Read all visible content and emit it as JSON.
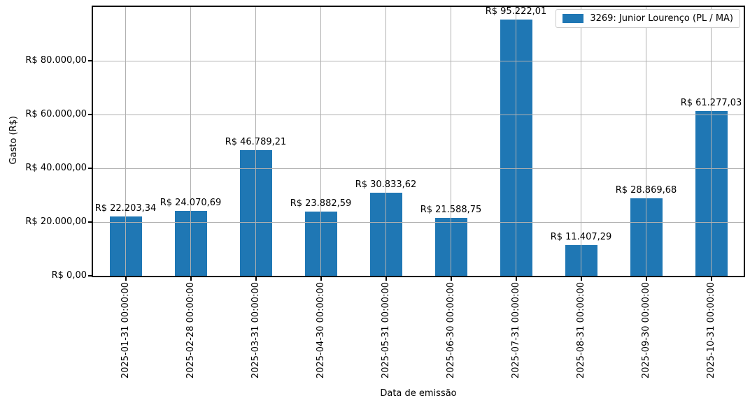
{
  "chart_data": {
    "type": "bar",
    "title": "",
    "xlabel": "Data de emissão",
    "ylabel": "Gasto (R$)",
    "categories": [
      "2025-01-31 00:00:00",
      "2025-02-28 00:00:00",
      "2025-03-31 00:00:00",
      "2025-04-30 00:00:00",
      "2025-05-31 00:00:00",
      "2025-06-30 00:00:00",
      "2025-07-31 00:00:00",
      "2025-08-31 00:00:00",
      "2025-09-30 00:00:00",
      "2025-10-31 00:00:00"
    ],
    "values": [
      22203.34,
      24070.69,
      46789.21,
      23882.59,
      30833.62,
      21588.75,
      95222.01,
      11407.29,
      28869.68,
      61277.03
    ],
    "bar_labels": [
      "R$ 22.203,34",
      "R$ 24.070,69",
      "R$ 46.789,21",
      "R$ 23.882,59",
      "R$ 30.833,62",
      "R$ 21.588,75",
      "R$ 95.222,01",
      "R$ 11.407,29",
      "R$ 28.869,68",
      "R$ 61.277,03"
    ],
    "ylim": [
      0,
      100000
    ],
    "yticks": [
      {
        "value": 0,
        "label": "R$ 0,00"
      },
      {
        "value": 20000,
        "label": "R$ 20.000,00"
      },
      {
        "value": 40000,
        "label": "R$ 40.000,00"
      },
      {
        "value": 60000,
        "label": "R$ 60.000,00"
      },
      {
        "value": 80000,
        "label": "R$ 80.000,00"
      }
    ],
    "legend": {
      "label": "3269: Junior Lourenço (PL / MA)",
      "position": "upper right"
    },
    "bar_color": "#1f77b4",
    "grid": true,
    "grid_color": "#b0b0b0",
    "grid_on_top": true
  }
}
